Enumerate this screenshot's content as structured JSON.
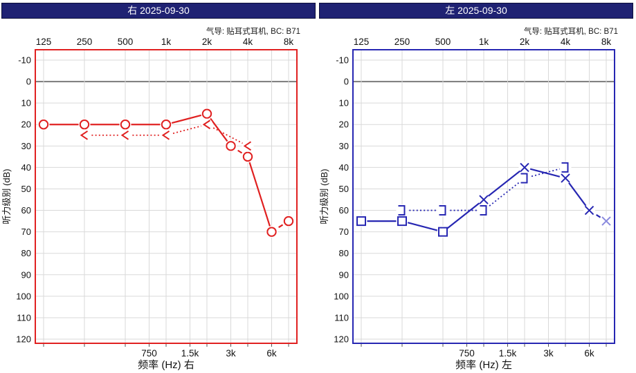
{
  "chart_data": [
    {
      "type": "line",
      "ear": "right",
      "title": "右 2025-09-30",
      "subtitle": "气导: 贴耳式耳机, BC: B71",
      "xlabel": "频率 (Hz) 右",
      "ylabel": "听力级别 (dB)",
      "accent": "#e02020",
      "accent_light": "#ef8a8a",
      "grid_color": "#d9d9d9",
      "zero_line_color": "#7a7a7a",
      "ylim": [
        -10,
        120
      ],
      "y_ticks": [
        -10,
        0,
        10,
        20,
        30,
        40,
        50,
        60,
        70,
        80,
        90,
        100,
        110,
        120
      ],
      "top_ticks": [
        {
          "f": 125,
          "label": "125"
        },
        {
          "f": 250,
          "label": "250"
        },
        {
          "f": 500,
          "label": "500"
        },
        {
          "f": 1000,
          "label": "1k"
        },
        {
          "f": 2000,
          "label": "2k"
        },
        {
          "f": 4000,
          "label": "4k"
        },
        {
          "f": 8000,
          "label": "8k"
        }
      ],
      "bottom_ticks": [
        {
          "f": 750,
          "label": "750"
        },
        {
          "f": 1500,
          "label": "1.5k"
        },
        {
          "f": 3000,
          "label": "3k"
        },
        {
          "f": 6000,
          "label": "6k"
        }
      ],
      "series": [
        {
          "name": "air-conduction-right",
          "symbol": "circle",
          "line": "solid",
          "points": [
            {
              "f": 125,
              "db": 20
            },
            {
              "f": 250,
              "db": 20
            },
            {
              "f": 500,
              "db": 20
            },
            {
              "f": 1000,
              "db": 20
            },
            {
              "f": 2000,
              "db": 15
            },
            {
              "f": 3000,
              "db": 30
            },
            {
              "f": 4000,
              "db": 35
            },
            {
              "f": 6000,
              "db": 70
            },
            {
              "f": 8000,
              "db": 65
            }
          ],
          "links": [
            "solid",
            "solid",
            "solid",
            "solid",
            "solid",
            "dash",
            "solid",
            "dash"
          ]
        },
        {
          "name": "bone-conduction-right",
          "symbol": "chevron-left",
          "line": "dotted",
          "points": [
            {
              "f": 250,
              "db": 25
            },
            {
              "f": 500,
              "db": 25
            },
            {
              "f": 1000,
              "db": 25
            },
            {
              "f": 2000,
              "db": 20
            },
            {
              "f": 4000,
              "db": 30
            }
          ],
          "links": [
            "dotted",
            "dotted",
            "dotted",
            "dotted"
          ]
        }
      ]
    },
    {
      "type": "line",
      "ear": "left",
      "title": "左 2025-09-30",
      "subtitle": "气导: 贴耳式耳机, BC: B71",
      "xlabel": "频率 (Hz) 左",
      "ylabel": "听力级别 (dB)",
      "accent": "#2626b2",
      "accent_light": "#8a8ade",
      "grid_color": "#d9d9d9",
      "zero_line_color": "#7a7a7a",
      "ylim": [
        -10,
        120
      ],
      "y_ticks": [
        -10,
        0,
        10,
        20,
        30,
        40,
        50,
        60,
        70,
        80,
        90,
        100,
        110,
        120
      ],
      "top_ticks": [
        {
          "f": 125,
          "label": "125"
        },
        {
          "f": 250,
          "label": "250"
        },
        {
          "f": 500,
          "label": "500"
        },
        {
          "f": 1000,
          "label": "1k"
        },
        {
          "f": 2000,
          "label": "2k"
        },
        {
          "f": 4000,
          "label": "4k"
        },
        {
          "f": 8000,
          "label": "8k"
        }
      ],
      "bottom_ticks": [
        {
          "f": 750,
          "label": "750"
        },
        {
          "f": 1500,
          "label": "1.5k"
        },
        {
          "f": 3000,
          "label": "3k"
        },
        {
          "f": 6000,
          "label": "6k"
        }
      ],
      "series": [
        {
          "name": "air-conduction-left",
          "symbol": "mixed",
          "line": "solid",
          "points": [
            {
              "f": 125,
              "db": 65,
              "m": "square"
            },
            {
              "f": 250,
              "db": 65,
              "m": "square"
            },
            {
              "f": 500,
              "db": 70,
              "m": "square"
            },
            {
              "f": 1000,
              "db": 55,
              "m": "x"
            },
            {
              "f": 2000,
              "db": 40,
              "m": "x"
            },
            {
              "f": 4000,
              "db": 45,
              "m": "x"
            },
            {
              "f": 6000,
              "db": 60,
              "m": "x"
            },
            {
              "f": 8000,
              "db": 65,
              "m": "x",
              "light": true
            }
          ],
          "links": [
            "solid",
            "solid",
            "solid",
            "solid",
            "solid",
            "solid",
            "dash"
          ]
        },
        {
          "name": "bone-conduction-left",
          "symbol": "bracket-right",
          "line": "dotted",
          "points": [
            {
              "f": 250,
              "db": 60
            },
            {
              "f": 500,
              "db": 60
            },
            {
              "f": 1000,
              "db": 60
            },
            {
              "f": 2000,
              "db": 45
            },
            {
              "f": 4000,
              "db": 40
            }
          ],
          "links": [
            "dotted",
            "dotted",
            "dotted",
            "dotted"
          ]
        }
      ]
    }
  ]
}
